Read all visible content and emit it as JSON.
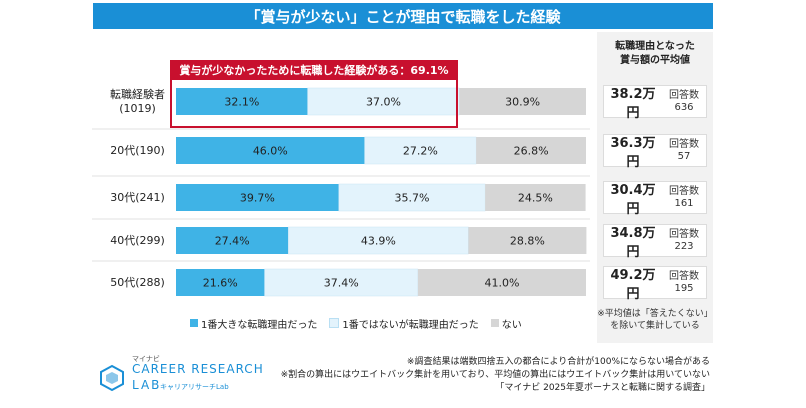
{
  "title": "「賞与が少ない」ことが理由で転職をした経験",
  "highlight": "賞与が少なかったために転職した経験がある：69.1%",
  "right_panel": {
    "header": "転職理由となった\n賞与額の平均値",
    "note": "※平均値は「答えたくない」\nを除いて集計している"
  },
  "chart_data": {
    "type": "bar",
    "orientation": "horizontal",
    "stacked": true,
    "percent_scale": true,
    "categories": [
      "転職経験者\n(1019)",
      "20代(190)",
      "30代(241)",
      "40代(299)",
      "50代(288)"
    ],
    "series": [
      {
        "name": "1番大きな転職理由だった",
        "color": "#3fb3e6",
        "values": [
          32.1,
          46.0,
          39.7,
          27.4,
          21.6
        ]
      },
      {
        "name": "1番ではないが転職理由だった",
        "color": "#e3f3fc",
        "values": [
          37.0,
          27.2,
          35.7,
          43.9,
          37.4
        ]
      },
      {
        "name": "ない",
        "color": "#d6d6d6",
        "values": [
          30.9,
          26.8,
          24.5,
          28.8,
          41.0
        ]
      }
    ],
    "data_labels": [
      [
        "32.1%",
        "37.0%",
        "30.9%"
      ],
      [
        "46.0%",
        "27.2%",
        "26.8%"
      ],
      [
        "39.7%",
        "35.7%",
        "24.5%"
      ],
      [
        "27.4%",
        "43.9%",
        "28.8%"
      ],
      [
        "21.6%",
        "37.4%",
        "41.0%"
      ]
    ],
    "xlim": [
      0,
      100
    ],
    "legend": "bottom"
  },
  "averages": [
    {
      "amount": "38.2万円",
      "count_label": "回答数",
      "count": "636"
    },
    {
      "amount": "36.3万円",
      "count_label": "回答数",
      "count": "57"
    },
    {
      "amount": "30.4万円",
      "count_label": "回答数",
      "count": "161"
    },
    {
      "amount": "34.8万円",
      "count_label": "回答数",
      "count": "223"
    },
    {
      "amount": "49.2万円",
      "count_label": "回答数",
      "count": "195"
    }
  ],
  "footnotes": [
    "※調査結果は端数四捨五入の都合により合計が100%にならない場合がある",
    "※割合の算出にはウエイトバック集計を用いており、平均値の算出にはウエイトバック集計は用いていない",
    "「マイナビ 2025年夏ボーナスと転職に関する調査」"
  ],
  "logo": {
    "sub": "マイナビ",
    "main": "CAREER RESEARCH",
    "lab": "LAB",
    "jp": "キャリアリサーチLab"
  }
}
